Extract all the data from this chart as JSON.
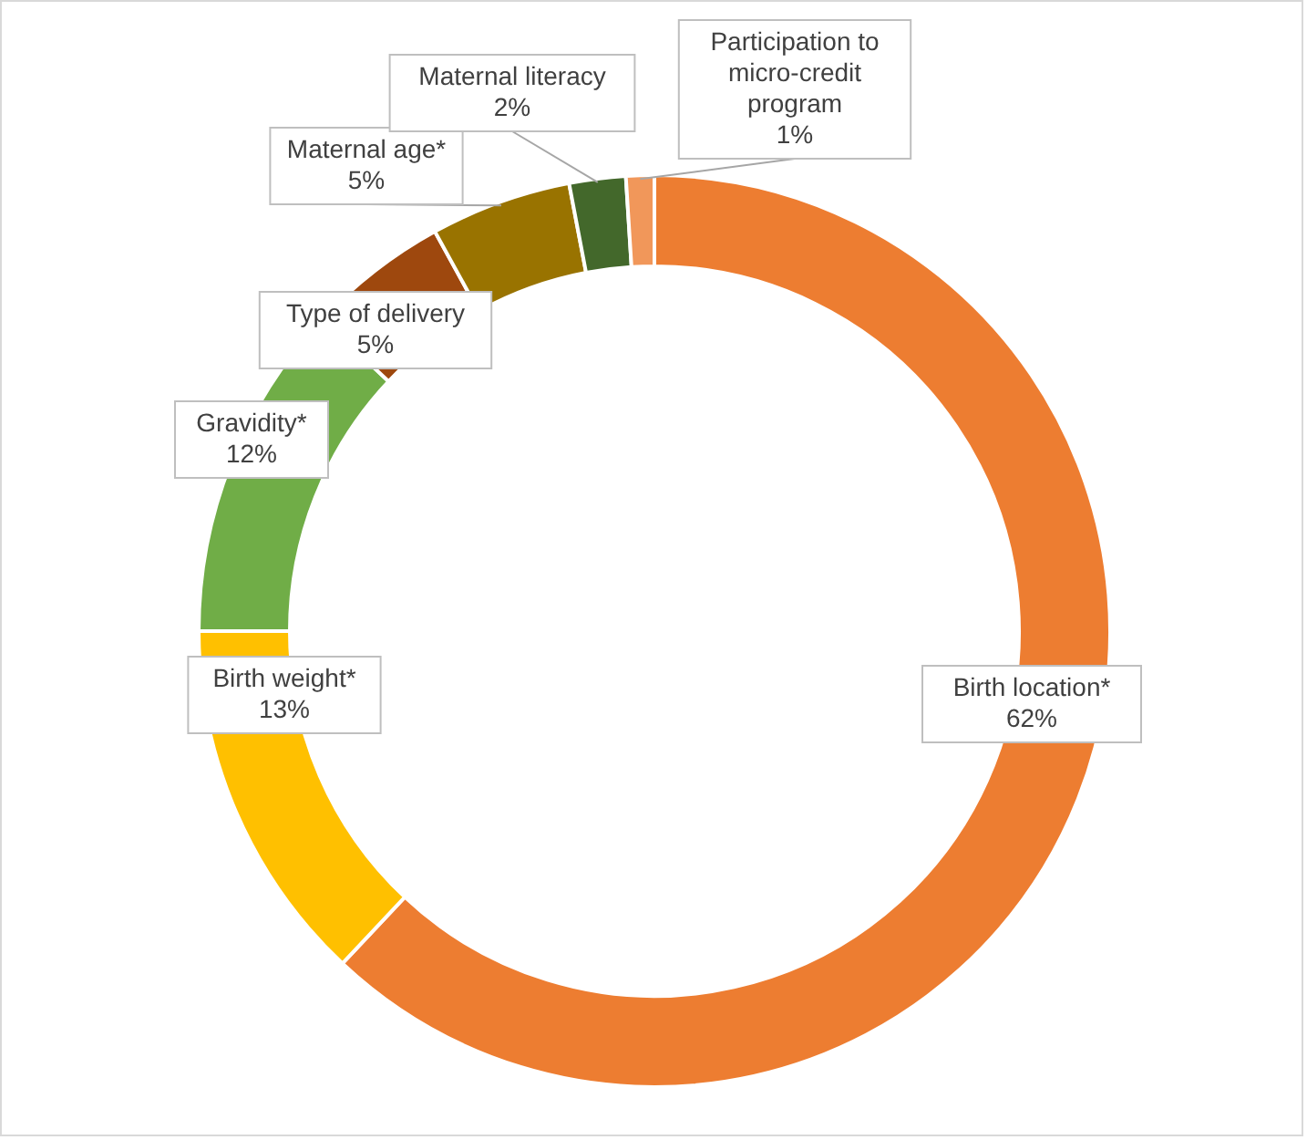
{
  "chart_data": {
    "type": "donut",
    "categories": [
      "Birth location*",
      "Birth weight*",
      "Gravidity*",
      "Type of delivery",
      "Maternal age*",
      "Maternal literacy",
      "Participation to micro-credit program"
    ],
    "values": [
      62,
      13,
      12,
      5,
      5,
      2,
      1
    ],
    "value_labels": [
      "62%",
      "13%",
      "12%",
      "5%",
      "5%",
      "2%",
      "1%"
    ],
    "colors": [
      "#ed7d31",
      "#ffc000",
      "#70ad47",
      "#9e480e",
      "#997300",
      "#43682b",
      "#f1975a"
    ]
  }
}
